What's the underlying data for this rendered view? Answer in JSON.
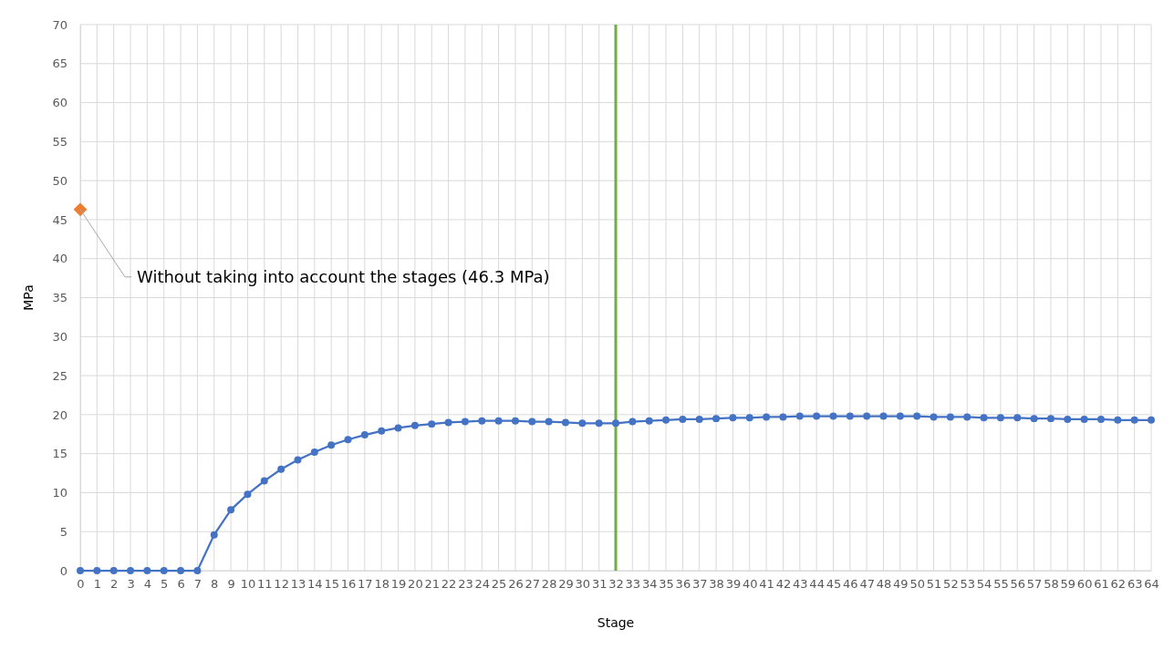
{
  "chart_data": {
    "type": "line",
    "xlabel": "Stage",
    "ylabel": "MPa",
    "x": [
      0,
      1,
      2,
      3,
      4,
      5,
      6,
      7,
      8,
      9,
      10,
      11,
      12,
      13,
      14,
      15,
      16,
      17,
      18,
      19,
      20,
      21,
      22,
      23,
      24,
      25,
      26,
      27,
      28,
      29,
      30,
      31,
      32,
      33,
      34,
      35,
      36,
      37,
      38,
      39,
      40,
      41,
      42,
      43,
      44,
      45,
      46,
      47,
      48,
      49,
      50,
      51,
      52,
      53,
      54,
      55,
      56,
      57,
      58,
      59,
      60,
      61,
      62,
      63,
      64
    ],
    "xlim": [
      0,
      64
    ],
    "xticks": [
      0,
      1,
      2,
      3,
      4,
      5,
      6,
      7,
      8,
      9,
      10,
      11,
      12,
      13,
      14,
      15,
      16,
      17,
      18,
      19,
      20,
      21,
      22,
      23,
      24,
      25,
      26,
      27,
      28,
      29,
      30,
      31,
      32,
      33,
      34,
      35,
      36,
      37,
      38,
      39,
      40,
      41,
      42,
      43,
      44,
      45,
      46,
      47,
      48,
      49,
      50,
      51,
      52,
      53,
      54,
      55,
      56,
      57,
      58,
      59,
      60,
      61,
      62,
      63,
      64
    ],
    "ylim": [
      0,
      70
    ],
    "yticks": [
      0,
      5,
      10,
      15,
      20,
      25,
      30,
      35,
      40,
      45,
      50,
      55,
      60,
      65,
      70
    ],
    "grid": true,
    "marker": "circle",
    "series": [
      {
        "color": "#4472c4",
        "values": [
          0,
          0,
          0,
          0,
          0,
          0,
          0,
          0,
          4.6,
          7.8,
          9.8,
          11.5,
          13.0,
          14.2,
          15.2,
          16.1,
          16.8,
          17.4,
          17.9,
          18.3,
          18.6,
          18.8,
          19.0,
          19.1,
          19.2,
          19.2,
          19.2,
          19.1,
          19.1,
          19.0,
          18.9,
          18.9,
          18.9,
          19.1,
          19.2,
          19.3,
          19.4,
          19.4,
          19.5,
          19.6,
          19.6,
          19.7,
          19.7,
          19.8,
          19.8,
          19.8,
          19.8,
          19.8,
          19.8,
          19.8,
          19.8,
          19.7,
          19.7,
          19.7,
          19.6,
          19.6,
          19.6,
          19.5,
          19.5,
          19.4,
          19.4,
          19.4,
          19.3,
          19.3,
          19.3
        ]
      },
      {
        "type": "scatter",
        "color": "#ed7d31",
        "marker": "diamond",
        "x": [
          0
        ],
        "values": [
          46.3
        ]
      }
    ],
    "ref_lines": [
      {
        "axis": "x",
        "value": 32,
        "color": "#70ad47",
        "line_style": "solid"
      }
    ],
    "annotations": [
      {
        "text": "Without taking into account the stages (46.3 MPa)",
        "x": 0,
        "y": 46.3
      }
    ]
  }
}
